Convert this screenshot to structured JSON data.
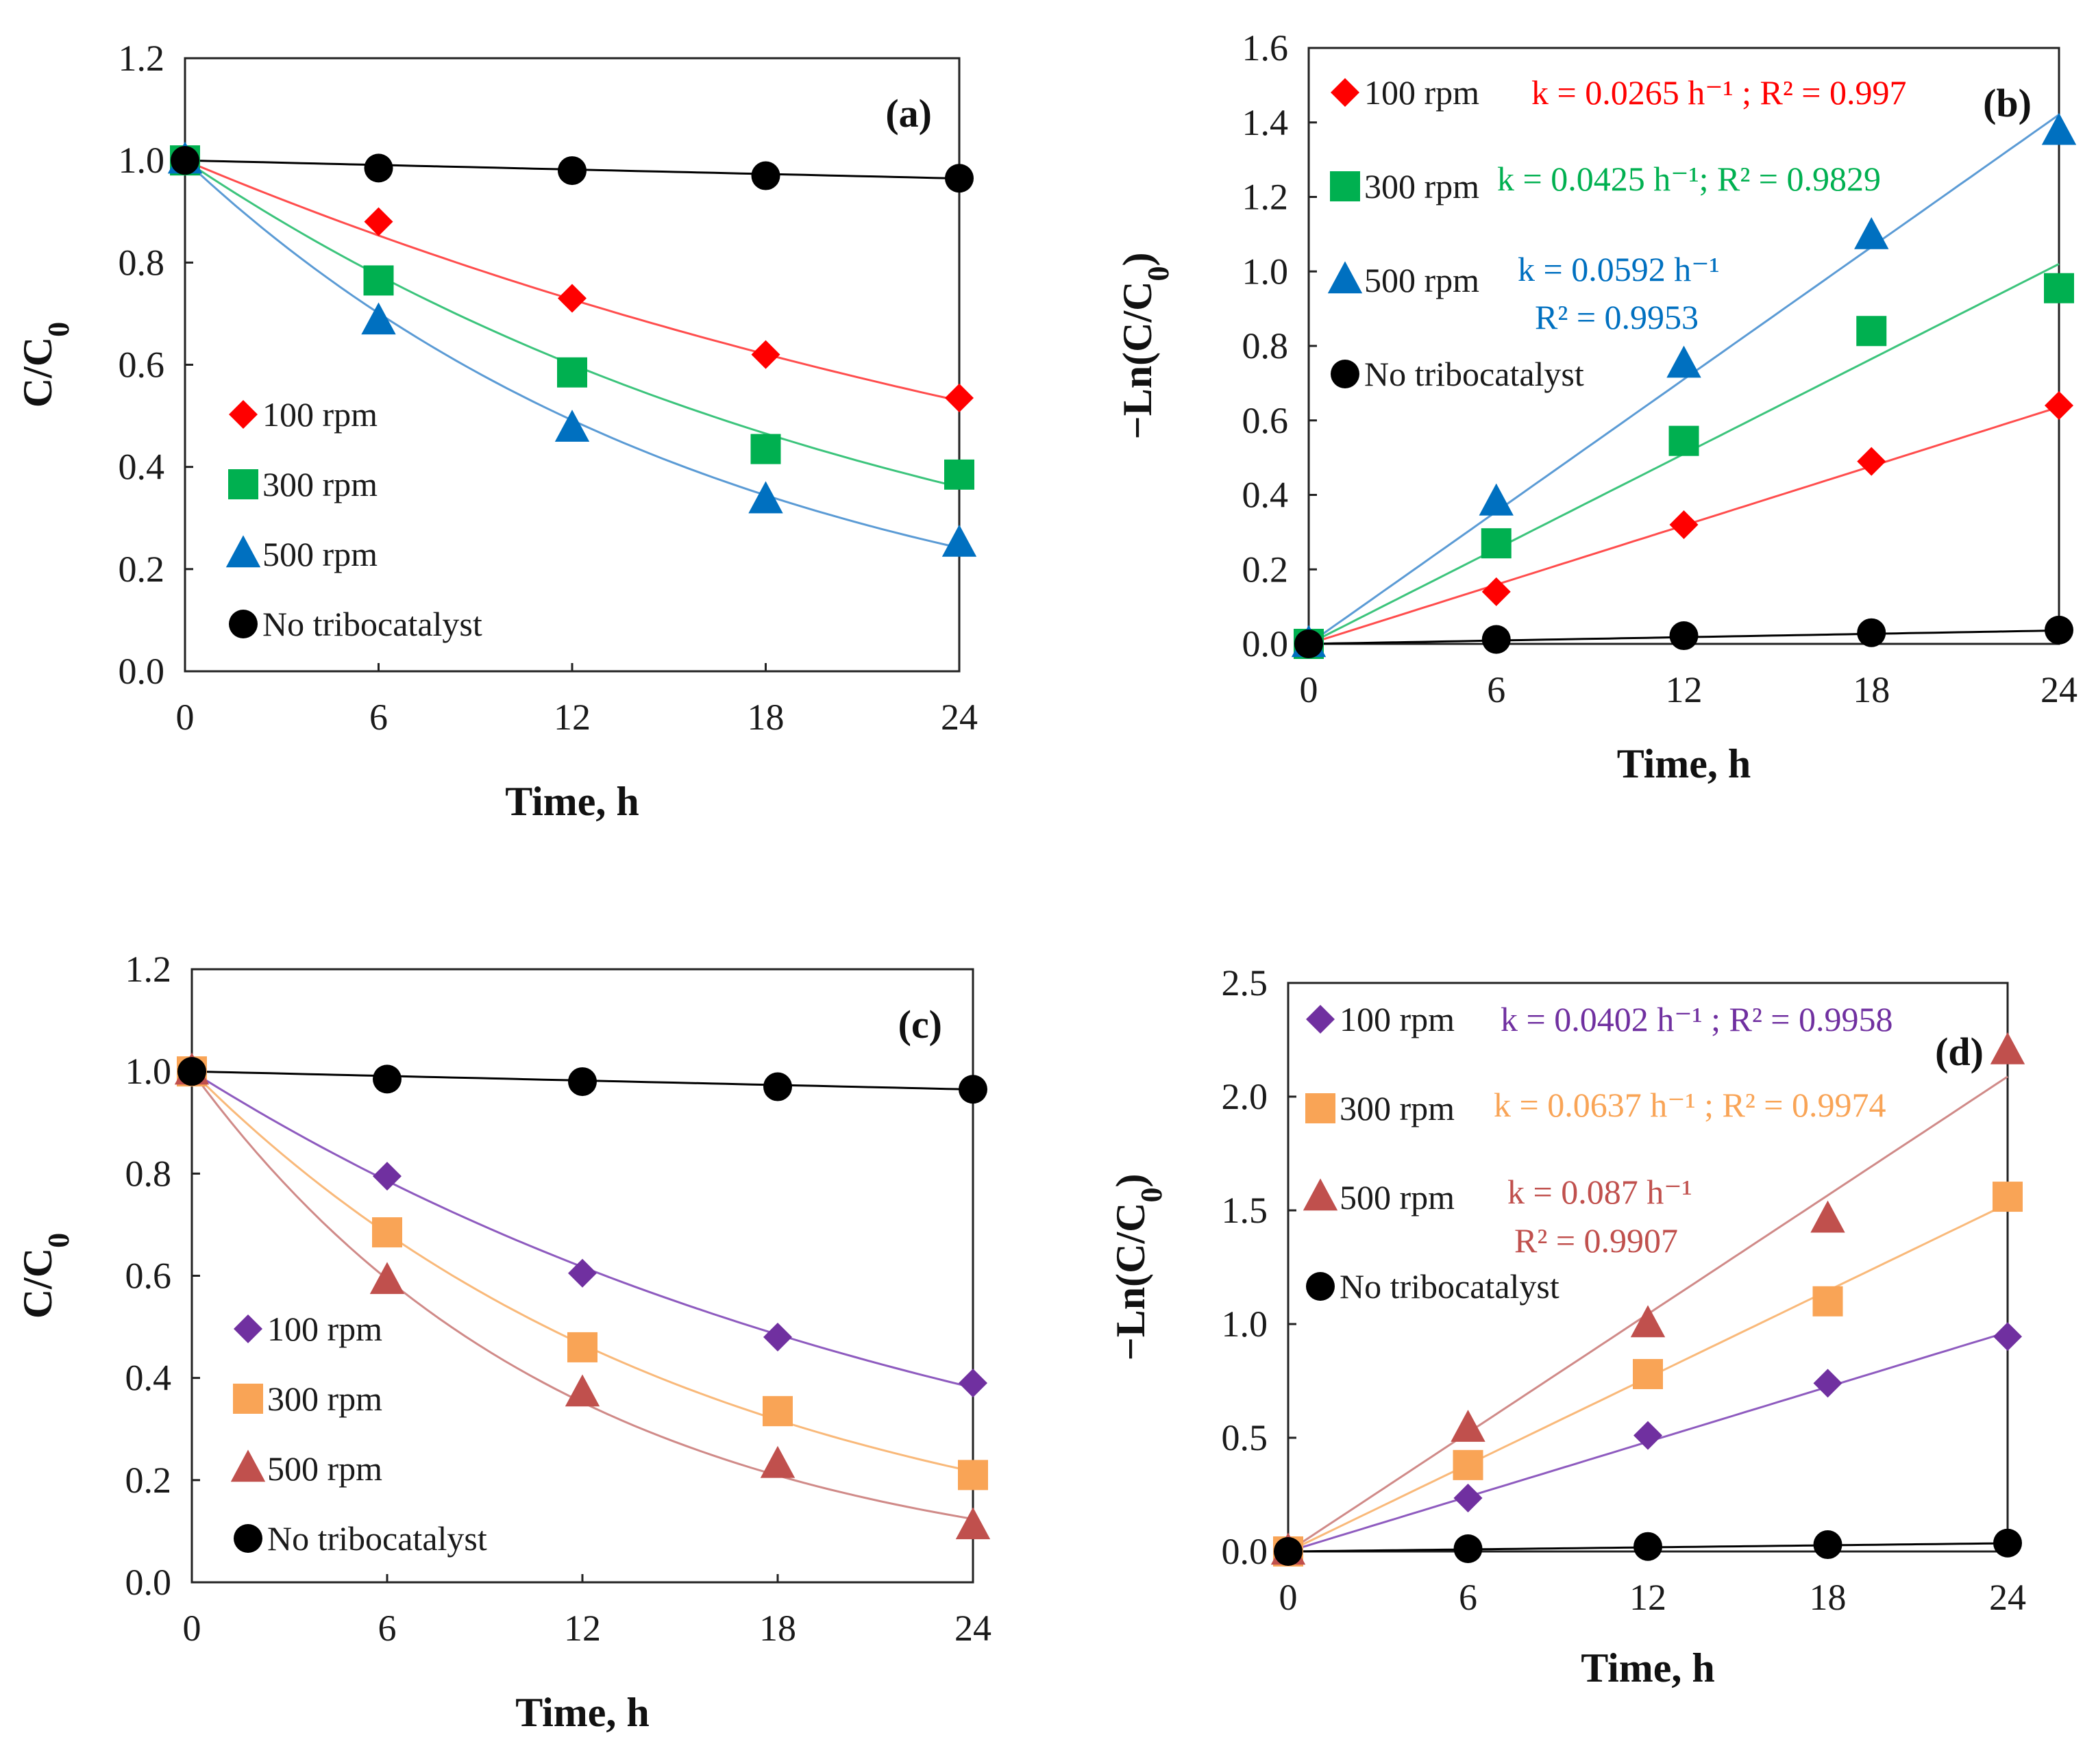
{
  "figure": {
    "panels": [
      "a",
      "b",
      "c",
      "d"
    ]
  },
  "chart_data": [
    {
      "id": "a",
      "type": "scatter",
      "panel_label": "(a)",
      "xlabel": "Time, h",
      "ylabel": "C/C0",
      "xlim": [
        0,
        24
      ],
      "ylim": [
        0,
        1.2
      ],
      "xticks": [
        0,
        6,
        12,
        18,
        24
      ],
      "xtick_labels": [
        "0",
        "6",
        "12",
        "18",
        "24"
      ],
      "yticks": [
        0,
        0.2,
        0.4,
        0.6,
        0.8,
        1.0,
        1.2
      ],
      "ytick_labels": [
        "0.0",
        "0.2",
        "0.4",
        "0.6",
        "0.8",
        "1.0",
        "1.2"
      ],
      "x": [
        0,
        6,
        12,
        18,
        24
      ],
      "fit": "exp",
      "legend_position": "bottom-left",
      "series": [
        {
          "name": "100 rpm",
          "marker": "diamond",
          "color": "#ff0000",
          "line_color": "#ff4d4d",
          "values": [
            1.0,
            0.88,
            0.73,
            0.62,
            0.535
          ],
          "k": 0.0265
        },
        {
          "name": "300 rpm",
          "marker": "square",
          "color": "#00b050",
          "line_color": "#3cc47c",
          "values": [
            1.0,
            0.765,
            0.585,
            0.435,
            0.385
          ],
          "k": 0.0425
        },
        {
          "name": "500 rpm",
          "marker": "triangle",
          "color": "#0070c0",
          "line_color": "#5b9bd5",
          "values": [
            1.0,
            0.685,
            0.475,
            0.335,
            0.25
          ],
          "k": 0.0592
        },
        {
          "name": "No tribocatalyst",
          "marker": "circle",
          "color": "#000000",
          "line_color": "#000000",
          "values": [
            1.0,
            0.985,
            0.98,
            0.97,
            0.965
          ],
          "k": 0.0015
        }
      ]
    },
    {
      "id": "b",
      "type": "scatter",
      "panel_label": "(b)",
      "xlabel": "Time, h",
      "ylabel": "−Ln(C/C0)",
      "xlim": [
        0,
        24
      ],
      "ylim": [
        0,
        1.6
      ],
      "xticks": [
        0,
        6,
        12,
        18,
        24
      ],
      "xtick_labels": [
        "0",
        "6",
        "12",
        "18",
        "24"
      ],
      "yticks": [
        0,
        0.2,
        0.4,
        0.6,
        0.8,
        1.0,
        1.2,
        1.4,
        1.6
      ],
      "ytick_labels": [
        "0.0",
        "0.2",
        "0.4",
        "0.6",
        "0.8",
        "1.0",
        "1.2",
        "1.4",
        "1.6"
      ],
      "x": [
        0,
        6,
        12,
        18,
        24
      ],
      "fit": "linear",
      "legend_position": "top-left",
      "series": [
        {
          "name": "100 rpm",
          "marker": "diamond",
          "color": "#ff0000",
          "line_color": "#ff4d4d",
          "values": [
            0,
            0.14,
            0.32,
            0.49,
            0.64
          ],
          "k": 0.0265,
          "annotation": [
            "k = 0.0265 h⁻¹ ; R² = 0.997"
          ]
        },
        {
          "name": "300 rpm",
          "marker": "square",
          "color": "#00b050",
          "line_color": "#3cc47c",
          "values": [
            0,
            0.27,
            0.545,
            0.84,
            0.955
          ],
          "k": 0.0425,
          "annotation": [
            "k = 0.0425 h⁻¹; R² = 0.9829"
          ]
        },
        {
          "name": "500 rpm",
          "marker": "triangle",
          "color": "#0070c0",
          "line_color": "#5b9bd5",
          "values": [
            0,
            0.38,
            0.75,
            1.095,
            1.375
          ],
          "k": 0.0592,
          "annotation": [
            "k = 0.0592 h⁻¹",
            "R² = 0.9953"
          ]
        },
        {
          "name": "No tribocatalyst",
          "marker": "circle",
          "color": "#000000",
          "line_color": "#000000",
          "values": [
            0,
            0.012,
            0.022,
            0.03,
            0.037
          ],
          "k": 0.0015
        }
      ]
    },
    {
      "id": "c",
      "type": "scatter",
      "panel_label": "(c)",
      "xlabel": "Time, h",
      "ylabel": "C/C0",
      "xlim": [
        0,
        24
      ],
      "ylim": [
        0,
        1.2
      ],
      "xticks": [
        0,
        6,
        12,
        18,
        24
      ],
      "xtick_labels": [
        "0",
        "6",
        "12",
        "18",
        "24"
      ],
      "yticks": [
        0,
        0.2,
        0.4,
        0.6,
        0.8,
        1.0,
        1.2
      ],
      "ytick_labels": [
        "0.0",
        "0.2",
        "0.4",
        "0.6",
        "0.8",
        "1.0",
        "1.2"
      ],
      "x": [
        0,
        6,
        12,
        18,
        24
      ],
      "fit": "exp",
      "legend_position": "bottom-left",
      "series": [
        {
          "name": "100 rpm",
          "marker": "diamond",
          "color": "#7030a0",
          "line_color": "#8e5bbf",
          "values": [
            1.0,
            0.795,
            0.605,
            0.48,
            0.39
          ],
          "k": 0.0402
        },
        {
          "name": "300 rpm",
          "marker": "square",
          "color": "#f9a456",
          "line_color": "#f9b97a",
          "values": [
            1.0,
            0.685,
            0.46,
            0.335,
            0.21
          ],
          "k": 0.0637
        },
        {
          "name": "500 rpm",
          "marker": "triangle",
          "color": "#c0504d",
          "line_color": "#d08a88",
          "values": [
            1.0,
            0.59,
            0.37,
            0.23,
            0.11
          ],
          "k": 0.087
        },
        {
          "name": "No tribocatalyst",
          "marker": "circle",
          "color": "#000000",
          "line_color": "#000000",
          "values": [
            1.0,
            0.985,
            0.98,
            0.97,
            0.965
          ],
          "k": 0.0015
        }
      ]
    },
    {
      "id": "d",
      "type": "scatter",
      "panel_label": "(d)",
      "xlabel": "Time, h",
      "ylabel": "−Ln(C/C0)",
      "xlim": [
        0,
        24
      ],
      "ylim": [
        0,
        2.5
      ],
      "xticks": [
        0,
        6,
        12,
        18,
        24
      ],
      "xtick_labels": [
        "0",
        "6",
        "12",
        "18",
        "24"
      ],
      "yticks": [
        0,
        0.5,
        1.0,
        1.5,
        2.0,
        2.5
      ],
      "ytick_labels": [
        "0.0",
        "0.5",
        "1.0",
        "1.5",
        "2.0",
        "2.5"
      ],
      "x": [
        0,
        6,
        12,
        18,
        24
      ],
      "fit": "linear",
      "legend_position": "top-left",
      "series": [
        {
          "name": "100 rpm",
          "marker": "diamond",
          "color": "#7030a0",
          "line_color": "#8e5bbf",
          "values": [
            0,
            0.235,
            0.51,
            0.74,
            0.945
          ],
          "k": 0.0402,
          "annotation": [
            "k = 0.0402 h⁻¹ ; R² = 0.9958"
          ]
        },
        {
          "name": "300 rpm",
          "marker": "square",
          "color": "#f9a456",
          "line_color": "#f9b97a",
          "values": [
            0,
            0.38,
            0.78,
            1.1,
            1.56
          ],
          "k": 0.0637,
          "annotation": [
            "k = 0.0637 h⁻¹ ; R² = 0.9974"
          ]
        },
        {
          "name": "500 rpm",
          "marker": "triangle",
          "color": "#c0504d",
          "line_color": "#d08a88",
          "values": [
            0,
            0.54,
            1.0,
            1.46,
            2.2
          ],
          "k": 0.087,
          "annotation": [
            "k = 0.087 h⁻¹",
            "R² = 0.9907"
          ]
        },
        {
          "name": "No tribocatalyst",
          "marker": "circle",
          "color": "#000000",
          "line_color": "#000000",
          "values": [
            0,
            0.012,
            0.022,
            0.03,
            0.037
          ],
          "k": 0.0015
        }
      ]
    }
  ]
}
